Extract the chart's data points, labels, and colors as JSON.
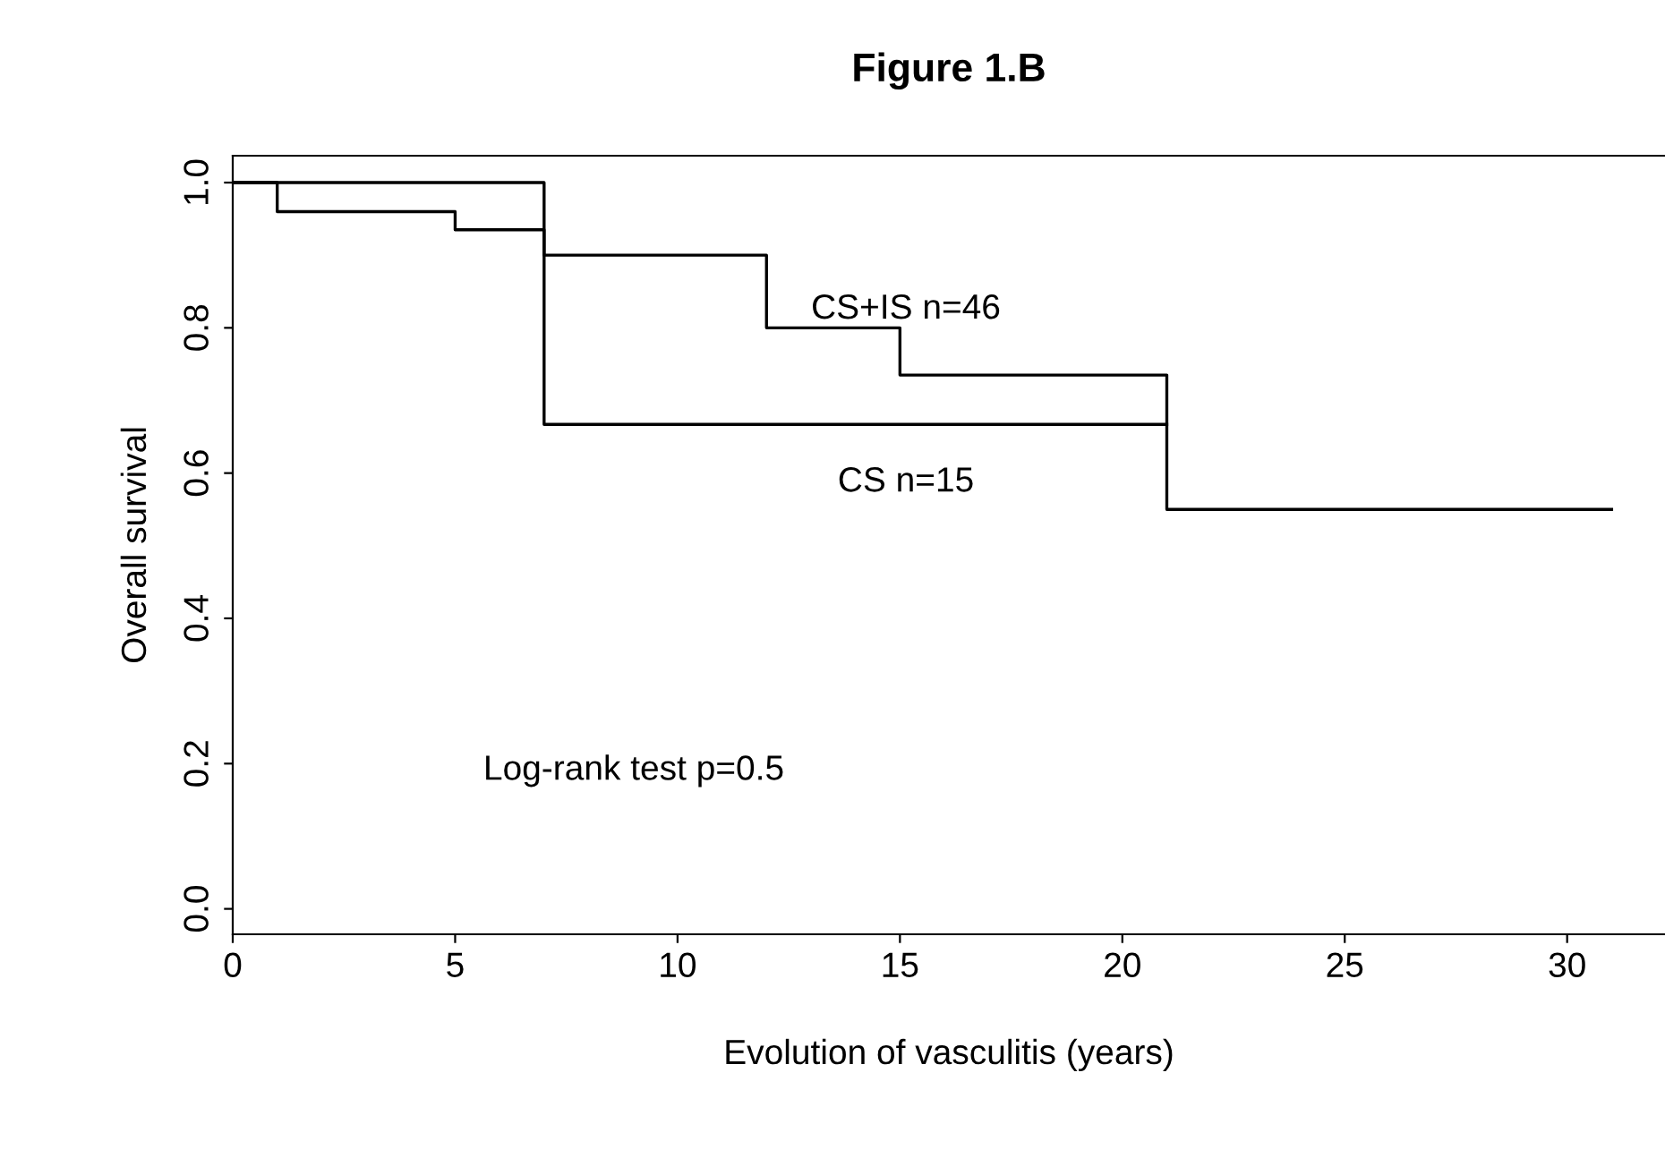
{
  "chart_data": {
    "type": "step",
    "title": "Figure 1.B",
    "xlabel": "Evolution of vasculitis (years)",
    "ylabel": "Overall survival",
    "series": [
      {
        "name": "CS+IS n=46",
        "color": "#000000",
        "x": [
          0,
          1,
          5,
          7,
          12,
          15,
          21,
          31
        ],
        "values": [
          1.0,
          0.96,
          0.935,
          0.9,
          0.8,
          0.735,
          0.55,
          0.55
        ]
      },
      {
        "name": "CS n=15",
        "color": "#000000",
        "x": [
          0,
          7,
          21
        ],
        "values": [
          1.0,
          0.667,
          0.667
        ]
      }
    ],
    "xlim": [
      0,
      32.2
    ],
    "ylim": [
      -0.035,
      1.037
    ],
    "xticks": [
      0,
      5,
      10,
      15,
      20,
      25,
      30
    ],
    "yticks": [
      {
        "value": 0,
        "label": "0.0"
      },
      {
        "value": 0.2,
        "label": "0.2"
      },
      {
        "value": 0.4,
        "label": "0.4"
      },
      {
        "value": 0.6,
        "label": "0.6"
      },
      {
        "value": 0.8,
        "label": "0.8"
      },
      {
        "value": 1.0,
        "label": "1.0"
      }
    ],
    "annotations": [
      "Log-rank test p=0.5"
    ],
    "grid": false,
    "marker": "none",
    "line_style": "solid"
  }
}
